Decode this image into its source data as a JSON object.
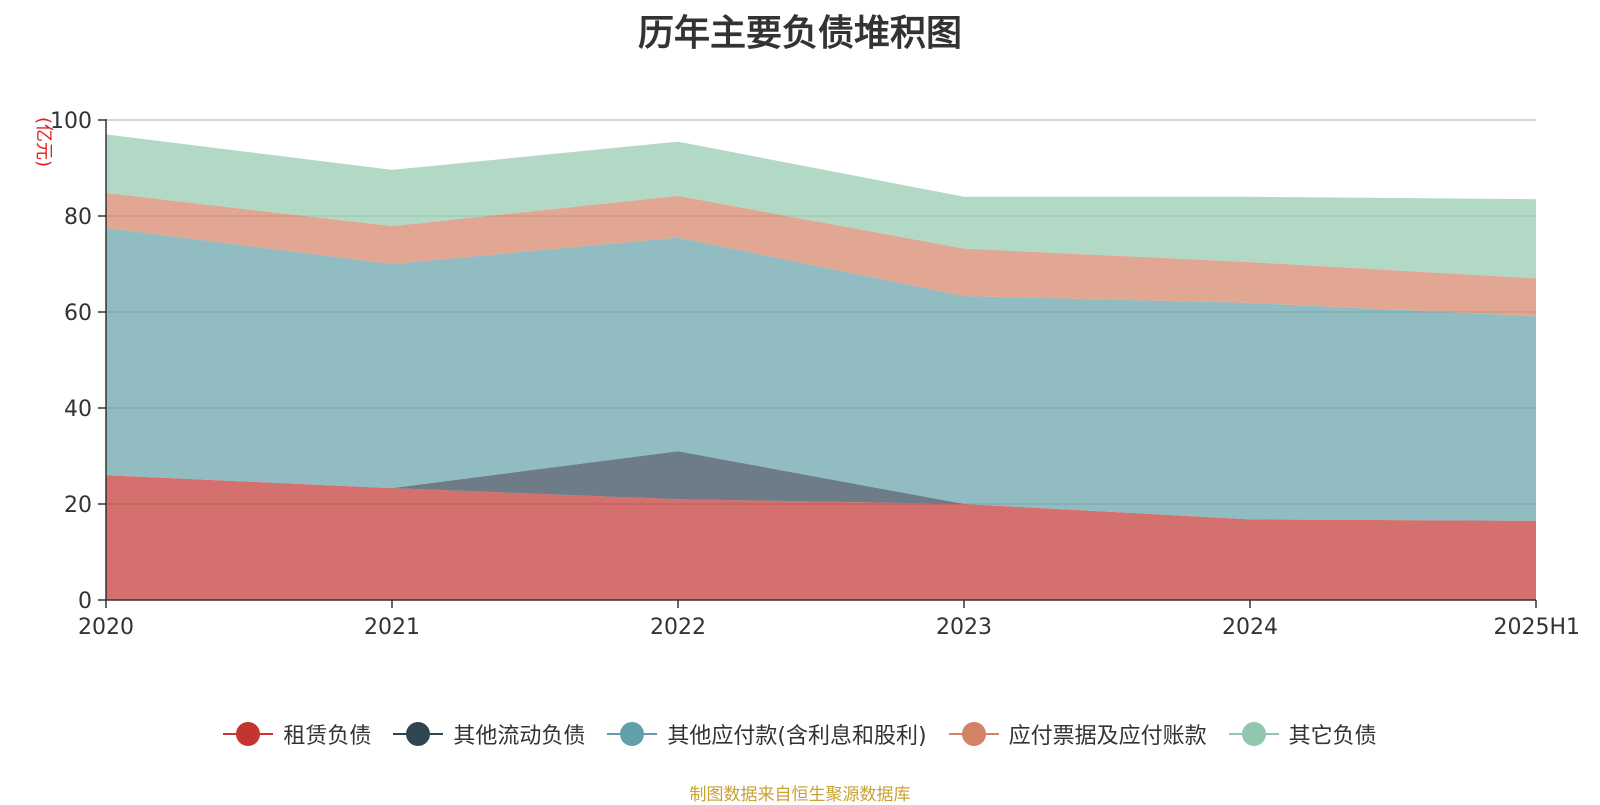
{
  "chart_data": {
    "type": "area",
    "stacked": true,
    "title": "历年主要负债堆积图",
    "unit_label": "(亿元)",
    "categories": [
      "2020",
      "2021",
      "2022",
      "2023",
      "2024",
      "2025H1"
    ],
    "ylim": [
      0,
      100
    ],
    "yticks": [
      0,
      20,
      40,
      60,
      80,
      100
    ],
    "grid": true,
    "legend_position": "bottom-center",
    "series": [
      {
        "name": "租赁负债",
        "color": "#c23531",
        "values": [
          26.0,
          23.3,
          21.0,
          20.0,
          16.8,
          16.5
        ]
      },
      {
        "name": "其他流动负债",
        "color": "#2f4554",
        "values": [
          0.0,
          0.0,
          10.0,
          0.0,
          0.0,
          0.0
        ]
      },
      {
        "name": "其他应付款(含利息和股利)",
        "color": "#61a0a8",
        "values": [
          51.5,
          46.7,
          44.5,
          43.3,
          45.1,
          42.6
        ]
      },
      {
        "name": "应付票据及应付账款",
        "color": "#d48265",
        "values": [
          7.3,
          7.9,
          8.7,
          9.9,
          8.5,
          7.9
        ]
      },
      {
        "name": "其它负债",
        "color": "#91c7ae",
        "values": [
          12.2,
          11.7,
          11.3,
          10.8,
          13.6,
          16.5
        ]
      }
    ]
  },
  "source_note": "制图数据来自恒生聚源数据库"
}
